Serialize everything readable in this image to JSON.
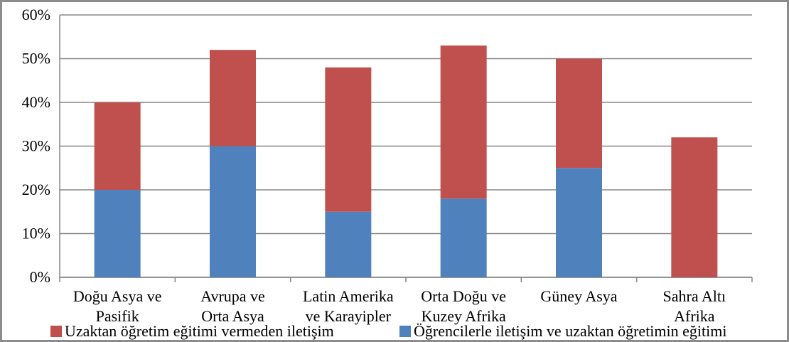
{
  "chart_data": {
    "type": "bar",
    "stacked": true,
    "categories": [
      [
        "Doğu Asya ve",
        "Pasifik"
      ],
      [
        "Avrupa ve",
        "Orta Asya"
      ],
      [
        "Latin Amerika",
        "ve Karayipler"
      ],
      [
        "Orta Doğu ve",
        "Kuzey Afrika"
      ],
      [
        "Güney Asya"
      ],
      [
        "Sahra Altı",
        "Afrika"
      ]
    ],
    "series": [
      {
        "name": "Öğrencilerle iletişim ve uzaktan öğretimin eğitimi",
        "color": "#4f81bd",
        "values": [
          20,
          30,
          15,
          18,
          25,
          0
        ]
      },
      {
        "name": "Uzaktan öğretim eğitimi vermeden iletişim",
        "color": "#c0504d",
        "values": [
          20,
          22,
          33,
          35,
          25,
          32
        ]
      }
    ],
    "ylim": [
      0,
      60
    ],
    "yticks": [
      "0%",
      "10%",
      "20%",
      "30%",
      "40%",
      "50%",
      "60%"
    ],
    "grid": true,
    "legend_position": "bottom"
  }
}
